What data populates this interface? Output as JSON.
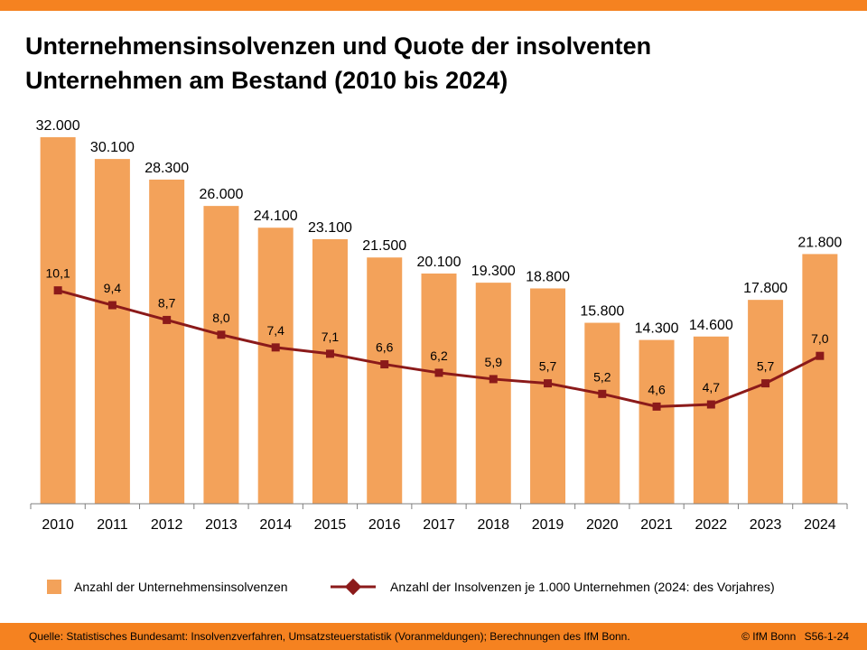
{
  "header": {
    "title_line1": "Unternehmensinsolvenzen und Quote der insolventen",
    "title_line2": "Unternehmen am Bestand (2010 bis 2024)"
  },
  "colors": {
    "accent_orange": "#f58220",
    "bar_fill": "#f3a25a",
    "line_color": "#8b1a1a"
  },
  "chart_data": {
    "type": "bar",
    "title": "Unternehmensinsolvenzen und Quote der insolventen Unternehmen am Bestand (2010 bis 2024)",
    "categories": [
      "2010",
      "2011",
      "2012",
      "2013",
      "2014",
      "2015",
      "2016",
      "2017",
      "2018",
      "2019",
      "2020",
      "2021",
      "2022",
      "2023",
      "2024"
    ],
    "series": [
      {
        "name": "Anzahl der Unternehmensinsolvenzen",
        "type": "bar",
        "values": [
          32000,
          30100,
          28300,
          26000,
          24100,
          23100,
          21500,
          20100,
          19300,
          18800,
          15800,
          14300,
          14600,
          17800,
          21800
        ],
        "labels": [
          "32.000",
          "30.100",
          "28.300",
          "26.000",
          "24.100",
          "23.100",
          "21.500",
          "20.100",
          "19.300",
          "18.800",
          "15.800",
          "14.300",
          "14.600",
          "17.800",
          "21.800"
        ]
      },
      {
        "name": "Anzahl der Insolvenzen je 1.000 Unternehmen (2024: des Vorjahres)",
        "type": "line",
        "values": [
          10.1,
          9.4,
          8.7,
          8.0,
          7.4,
          7.1,
          6.6,
          6.2,
          5.9,
          5.7,
          5.2,
          4.6,
          4.7,
          5.7,
          7.0
        ],
        "labels": [
          "10,1",
          "9,4",
          "8,7",
          "8,0",
          "7,4",
          "7,1",
          "6,6",
          "6,2",
          "5,9",
          "5,7",
          "5,2",
          "4,6",
          "4,7",
          "5,7",
          "7,0"
        ]
      }
    ],
    "xlabel": "",
    "ylabel": "",
    "ylim": [
      0,
      32000
    ],
    "y2lim": [
      0,
      20
    ],
    "grid": false,
    "legend_position": "bottom"
  },
  "legend": {
    "bar_label": "Anzahl der Unternehmensinsolvenzen",
    "line_label": "Anzahl der Insolvenzen je 1.000 Unternehmen (2024: des Vorjahres)"
  },
  "footer": {
    "source": "Quelle: Statistisches Bundesamt: Insolvenzverfahren, Umsatzsteuerstatistik (Voranmeldungen); Berechnungen des IfM Bonn.",
    "copyright": "© IfM Bonn",
    "code": "S56-1-24"
  }
}
